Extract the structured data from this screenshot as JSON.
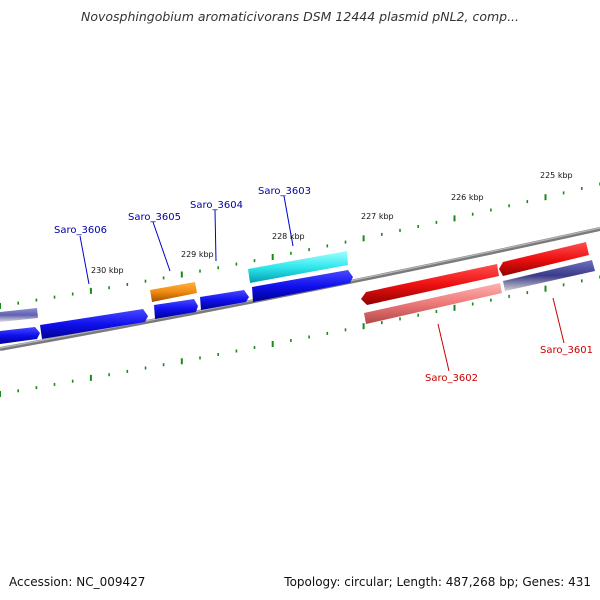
{
  "title": "Novosphingobium aromaticivorans DSM 12444 plasmid pNL2, comp...",
  "footer": {
    "accession": "Accession: NC_009427",
    "summary": "Topology: circular; Length: 487,268 bp; Genes: 431"
  },
  "colors": {
    "forward_gene": "#1010ee",
    "orange_gene": "#f08a10",
    "cyan_gene": "#30e8ee",
    "reverse_gene": "#ee1010",
    "pink_gene": "#ee7878",
    "navy_gene": "#3a3a8a",
    "backbone": "#808080",
    "tick": "#1a8a1a",
    "label_forward": "#0000aa",
    "label_reverse": "#cc0000"
  },
  "kbp_labels": [
    {
      "text": "230 kbp"
    },
    {
      "text": "229 kbp"
    },
    {
      "text": "228 kbp"
    },
    {
      "text": "227 kbp"
    },
    {
      "text": "226 kbp"
    },
    {
      "text": "225 kbp"
    }
  ],
  "gene_labels": [
    {
      "name": "Saro_3606",
      "strand": "forward"
    },
    {
      "name": "Saro_3605",
      "strand": "forward"
    },
    {
      "name": "Saro_3604",
      "strand": "forward"
    },
    {
      "name": "Saro_3603",
      "strand": "forward"
    },
    {
      "name": "Saro_3602",
      "strand": "reverse"
    },
    {
      "name": "Saro_3601",
      "strand": "reverse"
    }
  ]
}
